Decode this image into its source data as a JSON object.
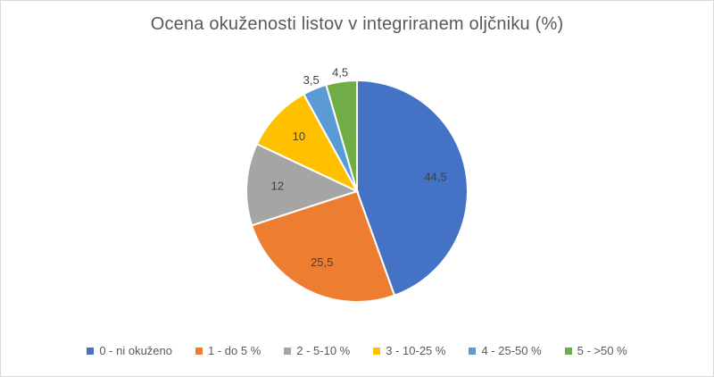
{
  "chart_data": {
    "type": "pie",
    "title": "Ocena okuženosti listov v integriranem oljčniku (%)",
    "categories": [
      "0 - ni okuženo",
      "1 - do 5 %",
      "2 - 5-10 %",
      "3 - 10-25 %",
      "4 - 25-50 %",
      "5 - >50 %"
    ],
    "values": [
      44.5,
      25.5,
      12,
      10,
      3.5,
      4.5
    ],
    "data_labels": [
      "44,5",
      "25,5",
      "12",
      "10",
      "3,5",
      "4,5"
    ],
    "colors": [
      "#4472c4",
      "#ed7d31",
      "#a5a5a5",
      "#ffc000",
      "#5b9bd5",
      "#70ad47"
    ],
    "legend": "bottom"
  }
}
